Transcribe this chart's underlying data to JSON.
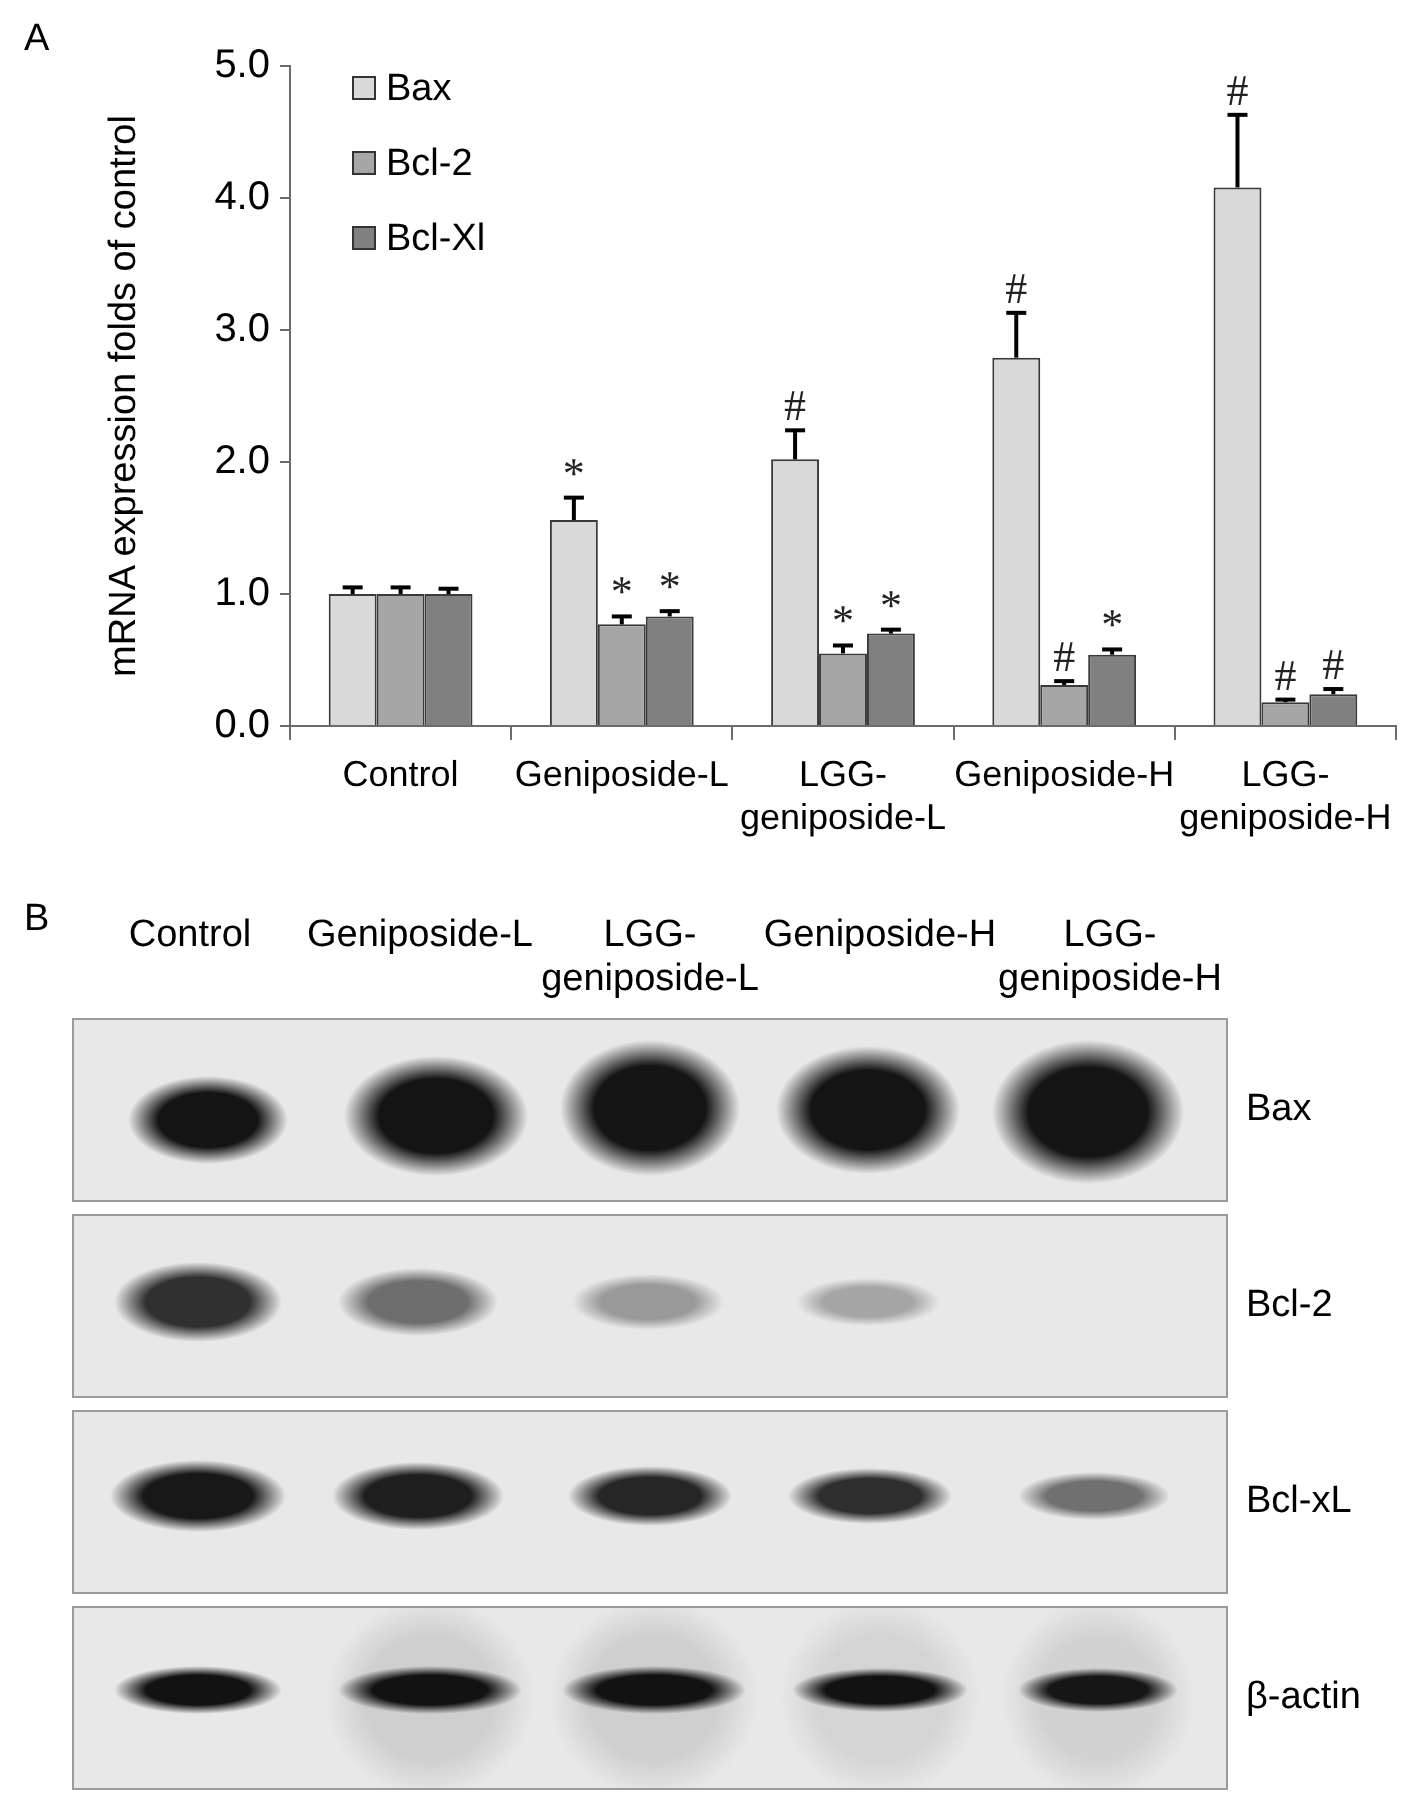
{
  "chart_data": [
    {
      "type": "bar",
      "title": "A",
      "categories": [
        "Control",
        "Geniposide-L",
        "LGG-geniposide-L",
        "Geniposide-H",
        "LGG-geniposide-H"
      ],
      "series": [
        {
          "name": "Bax",
          "color": "#d9d9d9",
          "values": [
            1.0,
            1.56,
            2.02,
            2.79,
            4.08
          ],
          "errors": [
            [
              1.0,
              1.05
            ],
            [
              1.56,
              1.73
            ],
            [
              2.02,
              2.24
            ],
            [
              2.79,
              3.13
            ],
            [
              4.08,
              4.63
            ]
          ],
          "value_labels": [
            null,
            "*",
            "#",
            "#",
            "#"
          ]
        },
        {
          "name": "Bcl-2",
          "color": "#a6a6a6",
          "values": [
            1.0,
            0.77,
            0.55,
            0.31,
            0.18
          ],
          "errors": [
            [
              1.0,
              1.05
            ],
            [
              0.77,
              0.83
            ],
            [
              0.55,
              0.61
            ],
            [
              0.31,
              0.34
            ],
            [
              0.18,
              0.2
            ]
          ],
          "value_labels": [
            null,
            "*",
            "*",
            "#",
            "#"
          ]
        },
        {
          "name": "Bcl-Xl",
          "color": "#808080",
          "values": [
            1.0,
            0.83,
            0.7,
            0.54,
            0.24
          ],
          "errors": [
            [
              1.0,
              1.04
            ],
            [
              0.83,
              0.87
            ],
            [
              0.7,
              0.73
            ],
            [
              0.54,
              0.58
            ],
            [
              0.24,
              0.28
            ]
          ],
          "value_labels": [
            null,
            "*",
            "*",
            "*",
            "#"
          ]
        }
      ],
      "ylabel": "mRNA expression folds of control",
      "ylim": [
        0,
        5
      ],
      "yticks": [
        {
          "value": 0,
          "label": "0.0"
        },
        {
          "value": 1,
          "label": "1.0"
        },
        {
          "value": 2,
          "label": "2.0"
        },
        {
          "value": 3,
          "label": "3.0"
        },
        {
          "value": 4,
          "label": "4.0"
        },
        {
          "value": 5,
          "label": "5.0"
        }
      ],
      "legend": "top left"
    },
    {
      "type": "other",
      "title": "B",
      "categories": [
        "Control",
        "Geniposide-L",
        "LGG-geniposide-L",
        "Geniposide-H",
        "LGG-geniposide-H"
      ],
      "annotations": [
        "Bax",
        "Bcl-2",
        "Bcl-xL",
        "β-actin"
      ]
    }
  ]
}
